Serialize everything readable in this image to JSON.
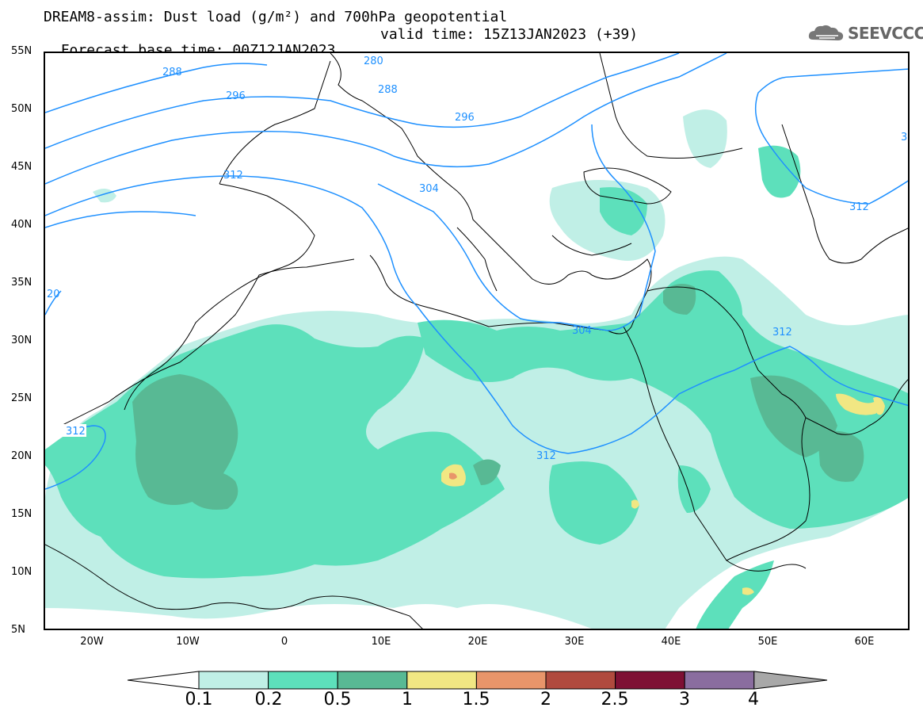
{
  "header": {
    "line1": "DREAM8-assim: Dust load (g/m²) and 700hPa geopotential",
    "base_time": "Forecast base time: 00Z12JAN2023",
    "valid_time": "valid time: 15Z13JAN2023 (+39)"
  },
  "logo": {
    "text": "SEEVCCC",
    "icon": "cloud-logo-icon"
  },
  "map": {
    "lat_labels": [
      "55N",
      "50N",
      "45N",
      "40N",
      "35N",
      "30N",
      "25N",
      "20N",
      "15N",
      "10N",
      "5N"
    ],
    "lon_labels": [
      "20W",
      "10W",
      "0",
      "10E",
      "20E",
      "30E",
      "40E",
      "50E",
      "60E"
    ],
    "contour_labels": [
      "280",
      "288",
      "288",
      "296",
      "296",
      "304",
      "304",
      "312",
      "312",
      "312",
      "312",
      "3",
      "20"
    ]
  },
  "colorbar": {
    "ticks": [
      "0.1",
      "0.2",
      "0.5",
      "1",
      "1.5",
      "2",
      "2.5",
      "3",
      "4"
    ],
    "colors": [
      "#c0efe6",
      "#5de0bb",
      "#58b994",
      "#f1e783",
      "#e8956a",
      "#b04a3e",
      "#7e1034",
      "#8a6d9f"
    ],
    "under_color": "#ffffff",
    "over_color": "#a8a8a8"
  }
}
